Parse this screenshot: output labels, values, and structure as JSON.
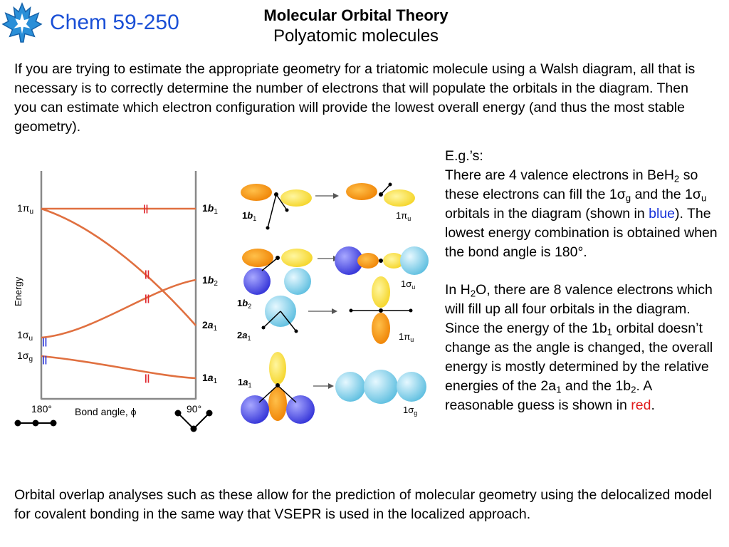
{
  "header": {
    "course": "Chem 59-250",
    "title": "Molecular Orbital Theory",
    "subtitle": "Polyatomic molecules"
  },
  "intro": "If you are trying to estimate the appropriate geometry for a triatomic molecule using a Walsh diagram, all that is necessary is to correctly determine the number of electrons that will populate the orbitals in the diagram.  Then you can estimate which electron configuration will provide the lowest overall energy (and thus the most stable geometry).",
  "examples": {
    "heading": "E.g.’s:",
    "p1": {
      "t1": "There are 4 valence electrons in BeH",
      "s1": "2",
      "t2": " so these electrons can fill the 1",
      "g1": "σ",
      "s2": "g",
      "t3": " and the 1",
      "g2": "σ",
      "s3": "u",
      "t4": " orbitals in the diagram (shown in ",
      "highlight": "blue",
      "t5": ").  The lowest energy combination is obtained when the bond angle is 180°."
    },
    "p2": {
      "t1": "In H",
      "s1": "2",
      "t2": "O, there are 8 valence electrons which will fill up all four orbitals in the diagram.  Since the energy of the 1b",
      "s2": "1",
      "t3": " orbital doesn’t change as the angle is changed, the overall energy is mostly determined by the relative energies of the 2a",
      "s3": "1",
      "t4": " and the 1b",
      "s4": "2",
      "t5": ".  A reasonable guess is shown in ",
      "highlight": "red",
      "t6": "."
    }
  },
  "outro": "Orbital overlap analyses such as these allow for the prediction of molecular geometry using the delocalized model for covalent bonding in the same way that VSEPR is used in the localized approach.",
  "walsh": {
    "y_axis": "Energy",
    "x_axis": "Bond angle, ",
    "phi": "ϕ",
    "left_angle": "180°",
    "right_angle": "90°",
    "electron_pair": "||",
    "left_labels": [
      {
        "n": "1",
        "g": "π",
        "s": "u"
      },
      {
        "n": "1",
        "g": "σ",
        "s": "u"
      },
      {
        "n": "1",
        "g": "σ",
        "s": "g"
      }
    ],
    "right_labels": [
      {
        "n": "1",
        "l": "b",
        "s": "1"
      },
      {
        "n": "1",
        "l": "b",
        "s": "2"
      },
      {
        "n": "2",
        "l": "a",
        "s": "1"
      },
      {
        "n": "1",
        "l": "a",
        "s": "1"
      }
    ]
  },
  "orbitals": {
    "row1": {
      "left": {
        "n": "1",
        "l": "b",
        "s": "1"
      },
      "right": {
        "n": "1",
        "g": "π",
        "s": "u"
      }
    },
    "row2": {
      "right": {
        "n": "1",
        "g": "σ",
        "s": "u"
      }
    },
    "row3": {
      "left_top": {
        "n": "1",
        "l": "b",
        "s": "2"
      },
      "left_bottom": {
        "n": "2",
        "l": "a",
        "s": "1"
      },
      "right": {
        "n": "1",
        "g": "π",
        "s": "u"
      }
    },
    "row4": {
      "left": {
        "n": "1",
        "l": "a",
        "s": "1"
      },
      "right": {
        "n": "1",
        "g": "σ",
        "s": "g"
      }
    }
  },
  "colors": {
    "course": "#1a4fd6",
    "curve": "#e07040",
    "red_pair": "#e0282f",
    "blue_pair": "#2b35d8",
    "lobe_orange": "#f39a18",
    "lobe_yellow": "#f8de40",
    "sphere_purple": "#5c5cf0",
    "sphere_cyan": "#8fd6ee"
  }
}
